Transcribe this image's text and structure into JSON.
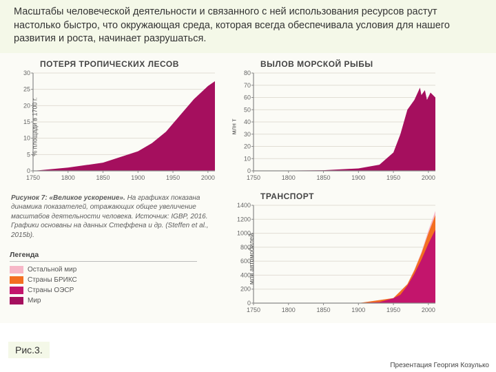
{
  "background_color": "#ffffff",
  "band_color": "#f4f8e8",
  "chart_bg": "#fbfbf6",
  "intro_text": "Масштабы человеческой деятельности и связанного с ней использования ресурсов растут настолько быстро, что окружающая среда, которая всегда обеспечивала условия для нашего развития и роста, начинает разрушаться.",
  "fig_label": "Рис.3.",
  "credit": "Презентация Георгия Козулько",
  "caption": {
    "title": "Рисунок 7: «Великое ускорение».",
    "body": "На графиках показана динамика показателей, отражающих общее увеличение масштабов деятельности человека. Источник: IGBP, 2016. Графики основаны на данных Стеффена и др. (Steffen et al., 2015b)."
  },
  "legend": {
    "title": "Легенда",
    "items": [
      {
        "label": "Остальной мир",
        "color": "#f7b7c7"
      },
      {
        "label": "Страны БРИКС",
        "color": "#f36f21"
      },
      {
        "label": "Страны ОЭСР",
        "color": "#c3156c"
      },
      {
        "label": "Мир",
        "color": "#a50f5e"
      }
    ]
  },
  "charts": {
    "forest": {
      "type": "area",
      "title": "ПОТЕРЯ ТРОПИЧЕСКИХ ЛЕСОВ",
      "ylabel": "% площади в 1700 г.",
      "xlim": [
        1750,
        2010
      ],
      "ylim": [
        0,
        30
      ],
      "xticks": [
        1750,
        1800,
        1850,
        1900,
        1950,
        2000
      ],
      "yticks": [
        0,
        5,
        10,
        15,
        20,
        25,
        30
      ],
      "grid_color": "#e0ddd4",
      "axis_color": "#888",
      "series": [
        {
          "color": "#a50f5e",
          "points": [
            [
              1750,
              0
            ],
            [
              1800,
              1
            ],
            [
              1850,
              2.5
            ],
            [
              1900,
              6
            ],
            [
              1920,
              8.5
            ],
            [
              1940,
              12
            ],
            [
              1960,
              17
            ],
            [
              1980,
              22
            ],
            [
              2000,
              26
            ],
            [
              2010,
              27.5
            ]
          ]
        }
      ]
    },
    "fish": {
      "type": "area",
      "title": "ВЫЛОВ МОРСКОЙ РЫБЫ",
      "ylabel": "млн т",
      "xlim": [
        1750,
        2010
      ],
      "ylim": [
        0,
        80
      ],
      "xticks": [
        1750,
        1800,
        1850,
        1900,
        1950,
        2000
      ],
      "yticks": [
        0,
        10,
        20,
        30,
        40,
        50,
        60,
        70,
        80
      ],
      "grid_color": "#e0ddd4",
      "axis_color": "#888",
      "series": [
        {
          "color": "#a50f5e",
          "points": [
            [
              1750,
              0
            ],
            [
              1850,
              0.5
            ],
            [
              1900,
              2
            ],
            [
              1930,
              5
            ],
            [
              1950,
              15
            ],
            [
              1960,
              30
            ],
            [
              1970,
              50
            ],
            [
              1980,
              58
            ],
            [
              1988,
              68
            ],
            [
              1990,
              62
            ],
            [
              1995,
              66
            ],
            [
              1998,
              58
            ],
            [
              2003,
              64
            ],
            [
              2010,
              60
            ]
          ]
        }
      ]
    },
    "transport": {
      "type": "area-stacked",
      "title": "ТРАНСПОРТ",
      "ylabel": "млн автомобилей",
      "xlim": [
        1750,
        2010
      ],
      "ylim": [
        0,
        1400
      ],
      "xticks": [
        1750,
        1800,
        1850,
        1900,
        1950,
        2000
      ],
      "yticks": [
        0,
        200,
        400,
        600,
        800,
        1000,
        1200,
        1400
      ],
      "grid_color": "#e0ddd4",
      "axis_color": "#888",
      "series": [
        {
          "color": "#c3156c",
          "points": [
            [
              1900,
              0
            ],
            [
              1930,
              15
            ],
            [
              1950,
              70
            ],
            [
              1960,
              120
            ],
            [
              1970,
              250
            ],
            [
              1980,
              420
            ],
            [
              1990,
              620
            ],
            [
              2000,
              850
            ],
            [
              2010,
              1050
            ]
          ]
        },
        {
          "color": "#f36f21",
          "points": [
            [
              1900,
              0
            ],
            [
              1950,
              72
            ],
            [
              1970,
              270
            ],
            [
              1980,
              470
            ],
            [
              1990,
              710
            ],
            [
              2000,
              1000
            ],
            [
              2010,
              1260
            ]
          ]
        },
        {
          "color": "#f7b7c7",
          "points": [
            [
              1900,
              0
            ],
            [
              1950,
              73
            ],
            [
              1970,
              275
            ],
            [
              1980,
              480
            ],
            [
              1990,
              730
            ],
            [
              2000,
              1040
            ],
            [
              2010,
              1320
            ]
          ]
        }
      ]
    }
  }
}
